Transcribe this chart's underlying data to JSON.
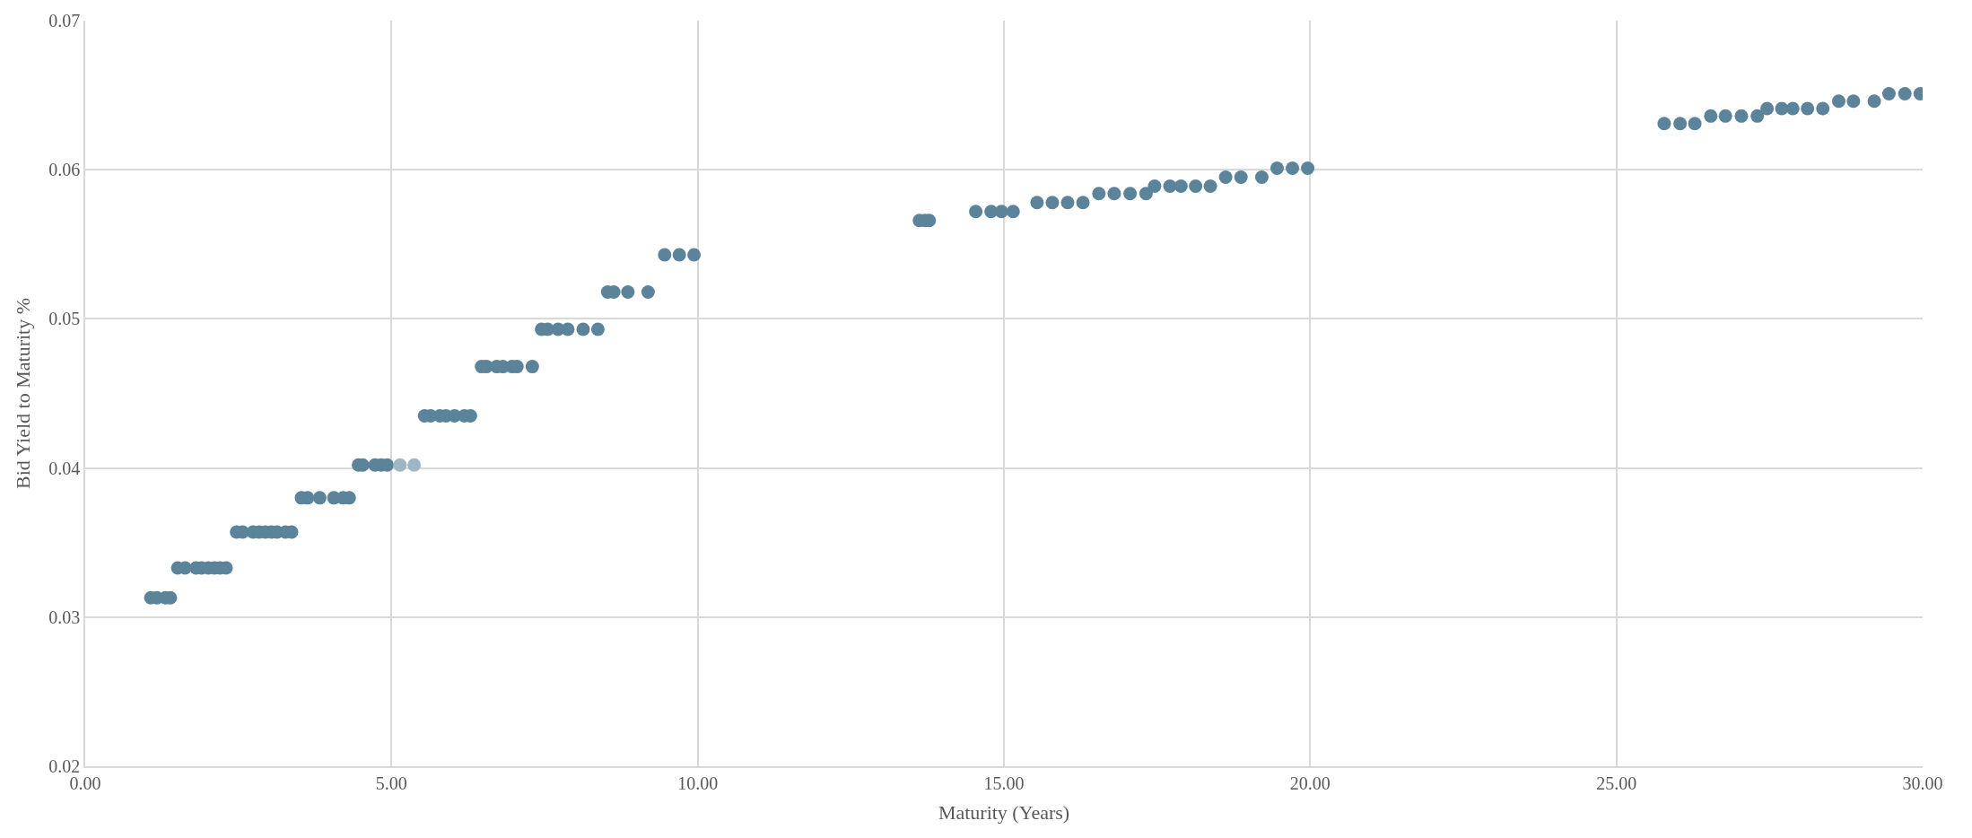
{
  "chart_data": {
    "type": "scatter",
    "xlabel": "Maturity (Years)",
    "ylabel": "Bid Yield to Maturity %",
    "x": [
      1.07,
      1.17,
      1.31,
      1.39,
      1.51,
      1.63,
      1.81,
      1.9,
      2.01,
      2.11,
      2.2,
      2.3,
      2.47,
      2.57,
      2.74,
      2.84,
      2.94,
      3.04,
      3.13,
      3.27,
      3.37,
      3.53,
      3.63,
      3.83,
      4.06,
      4.21,
      4.31,
      4.46,
      4.53,
      4.73,
      4.83,
      4.93,
      5.14,
      5.37,
      5.54,
      5.64,
      5.79,
      5.89,
      6.03,
      6.19,
      6.29,
      6.47,
      6.55,
      6.72,
      6.82,
      6.97,
      7.05,
      7.3,
      7.45,
      7.55,
      7.72,
      7.88,
      8.13,
      8.37,
      8.53,
      8.63,
      8.86,
      9.19,
      9.46,
      9.7,
      9.94,
      13.62,
      13.71,
      13.78,
      14.54,
      14.79,
      14.96,
      15.15,
      15.54,
      15.79,
      16.04,
      16.29,
      16.55,
      16.8,
      17.06,
      17.32,
      17.46,
      17.71,
      17.89,
      18.13,
      18.37,
      18.62,
      18.87,
      19.21,
      19.46,
      19.71,
      19.96,
      25.78,
      26.04,
      26.28,
      26.54,
      26.78,
      27.04,
      27.3,
      27.46,
      27.7,
      27.88,
      28.12,
      28.37,
      28.63,
      28.87,
      29.21,
      29.45,
      29.71,
      29.96
    ],
    "values": [
      0.0313,
      0.0313,
      0.0313,
      0.0313,
      0.0333,
      0.0333,
      0.0333,
      0.0333,
      0.0333,
      0.0333,
      0.0333,
      0.0333,
      0.0357,
      0.0357,
      0.0357,
      0.0357,
      0.0357,
      0.0357,
      0.0357,
      0.0357,
      0.0357,
      0.038,
      0.038,
      0.038,
      0.038,
      0.038,
      0.038,
      0.0402,
      0.0402,
      0.0402,
      0.0402,
      0.0402,
      0.0402,
      0.0402,
      0.0435,
      0.0435,
      0.0435,
      0.0435,
      0.0435,
      0.0435,
      0.0435,
      0.0468,
      0.0468,
      0.0468,
      0.0468,
      0.0468,
      0.0468,
      0.0468,
      0.0493,
      0.0493,
      0.0493,
      0.0493,
      0.0493,
      0.0493,
      0.0518,
      0.0518,
      0.0518,
      0.0518,
      0.0543,
      0.0543,
      0.0543,
      0.0566,
      0.0566,
      0.0566,
      0.0572,
      0.0572,
      0.0572,
      0.0572,
      0.0578,
      0.0578,
      0.0578,
      0.0578,
      0.0584,
      0.0584,
      0.0584,
      0.0584,
      0.0589,
      0.0589,
      0.0589,
      0.0589,
      0.0589,
      0.0595,
      0.0595,
      0.0595,
      0.0601,
      0.0601,
      0.0601,
      0.0631,
      0.0631,
      0.0631,
      0.0636,
      0.0636,
      0.0636,
      0.0636,
      0.0641,
      0.0641,
      0.0641,
      0.0641,
      0.0641,
      0.0646,
      0.0646,
      0.0646,
      0.0651,
      0.0651,
      0.0651
    ],
    "colors": [
      "#5b849b",
      "#5b849b",
      "#5b849b",
      "#5b849b",
      "#5b849b",
      "#5b849b",
      "#5b849b",
      "#5b849b",
      "#5b849b",
      "#5b849b",
      "#5b849b",
      "#5b849b",
      "#5b849b",
      "#5b849b",
      "#5b849b",
      "#5b849b",
      "#5b849b",
      "#5b849b",
      "#5b849b",
      "#5b849b",
      "#5b849b",
      "#5b849b",
      "#5b849b",
      "#5b849b",
      "#5b849b",
      "#5b849b",
      "#5b849b",
      "#5b849b",
      "#5b849b",
      "#5b849b",
      "#5b849b",
      "#5b849b",
      "#9fb6c5",
      "#9fb6c5",
      "#5b849b",
      "#5b849b",
      "#5b849b",
      "#5b849b",
      "#5b849b",
      "#5b849b",
      "#5b849b",
      "#5b849b",
      "#5b849b",
      "#5b849b",
      "#5b849b",
      "#5b849b",
      "#5b849b",
      "#5b849b",
      "#5b849b",
      "#5b849b",
      "#5b849b",
      "#5b849b",
      "#5b849b",
      "#5b849b",
      "#5b849b",
      "#5b849b",
      "#5b849b",
      "#5b849b",
      "#5b849b",
      "#5b849b",
      "#5b849b",
      "#5b849b",
      "#5b849b",
      "#5b849b",
      "#5b849b",
      "#5b849b",
      "#5b849b",
      "#5b849b",
      "#5b849b",
      "#5b849b",
      "#5b849b",
      "#5b849b",
      "#5b849b",
      "#5b849b",
      "#5b849b",
      "#5b849b",
      "#5b849b",
      "#5b849b",
      "#5b849b",
      "#5b849b",
      "#5b849b",
      "#5b849b",
      "#5b849b",
      "#5b849b",
      "#5b849b",
      "#5b849b",
      "#5b849b",
      "#5b849b",
      "#5b849b",
      "#5b849b",
      "#5b849b",
      "#5b849b",
      "#5b849b",
      "#5b849b",
      "#5b849b",
      "#5b849b",
      "#5b849b",
      "#5b849b",
      "#5b849b",
      "#5b849b",
      "#5b849b",
      "#5b849b",
      "#5b849b",
      "#5b849b",
      "#5b849b"
    ],
    "xlim": [
      0,
      30
    ],
    "xticks": [
      {
        "value": 0,
        "label": "0.00"
      },
      {
        "value": 5,
        "label": "5.00"
      },
      {
        "value": 10,
        "label": "10.00"
      },
      {
        "value": 15,
        "label": "15.00"
      },
      {
        "value": 20,
        "label": "20.00"
      },
      {
        "value": 25,
        "label": "25.00"
      },
      {
        "value": 30,
        "label": "30.00"
      }
    ],
    "ylim": [
      0.02,
      0.07
    ],
    "yticks": [
      0.02,
      0.03,
      0.04,
      0.05,
      0.06,
      0.07
    ],
    "grid": true,
    "marker": "circle"
  }
}
